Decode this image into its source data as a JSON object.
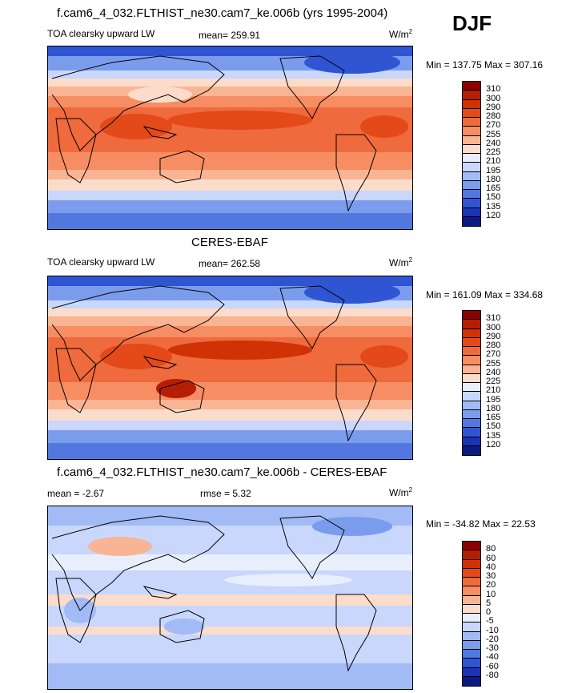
{
  "season": "DJF",
  "panels": [
    {
      "title": "f.cam6_4_032.FLTHIST_ne30.cam7_ke.006b (yrs 1995-2004)",
      "left_label": "TOA clearsky upward LW",
      "center_label": "mean= 259.91",
      "units": "W/m",
      "units_sup": "2",
      "minmax": "Min = 137.75 Max = 307.16",
      "levels": [
        "310",
        "300",
        "290",
        "280",
        "270",
        "255",
        "240",
        "225",
        "210",
        "195",
        "180",
        "165",
        "150",
        "135",
        "120"
      ],
      "colors": [
        "#8b0000",
        "#b51d05",
        "#d03205",
        "#e4491a",
        "#ef6a3c",
        "#f68d63",
        "#f9b493",
        "#fbdccb",
        "#e9eefc",
        "#c8d7fb",
        "#a2bbf6",
        "#7b9ced",
        "#5278e0",
        "#2f55d3",
        "#1b33b4",
        "#0a1a80"
      ]
    },
    {
      "title": "CERES-EBAF",
      "left_label": "TOA clearsky upward LW",
      "center_label": "mean= 262.58",
      "units": "W/m",
      "units_sup": "2",
      "minmax": "Min = 161.09 Max = 334.68",
      "levels": [
        "310",
        "300",
        "290",
        "280",
        "270",
        "255",
        "240",
        "225",
        "210",
        "195",
        "180",
        "165",
        "150",
        "135",
        "120"
      ],
      "colors": [
        "#8b0000",
        "#b51d05",
        "#d03205",
        "#e4491a",
        "#ef6a3c",
        "#f68d63",
        "#f9b493",
        "#fbdccb",
        "#e9eefc",
        "#c8d7fb",
        "#a2bbf6",
        "#7b9ced",
        "#5278e0",
        "#2f55d3",
        "#1b33b4",
        "#0a1a80"
      ]
    },
    {
      "title": "f.cam6_4_032.FLTHIST_ne30.cam7_ke.006b - CERES-EBAF",
      "left_label": "mean =  -2.67",
      "center_label": "rmse =   5.32",
      "units": "W/m",
      "units_sup": "2",
      "minmax": "Min = -34.82 Max =  22.53",
      "levels": [
        "80",
        "60",
        "40",
        "30",
        "20",
        "10",
        "5",
        "0",
        "-5",
        "-10",
        "-20",
        "-30",
        "-40",
        "-60",
        "-80"
      ],
      "colors": [
        "#8b0000",
        "#b51d05",
        "#d03205",
        "#e4491a",
        "#ef6a3c",
        "#f68d63",
        "#f9b493",
        "#fbdccb",
        "#e9eefc",
        "#c8d7fb",
        "#a2bbf6",
        "#7b9ced",
        "#5278e0",
        "#2f55d3",
        "#1b33b4",
        "#0a1a80"
      ]
    }
  ],
  "chart_data": [
    {
      "type": "heatmap",
      "title": "f.cam6_4_032.FLTHIST_ne30.cam7_ke.006b (yrs 1995-2004)",
      "variable": "TOA clearsky upward LW",
      "units": "W/m2",
      "mean": 259.91,
      "min": 137.75,
      "max": 307.16,
      "contour_levels": [
        120,
        135,
        150,
        165,
        180,
        195,
        210,
        225,
        240,
        255,
        270,
        280,
        290,
        300,
        310
      ]
    },
    {
      "type": "heatmap",
      "title": "CERES-EBAF",
      "variable": "TOA clearsky upward LW",
      "units": "W/m2",
      "mean": 262.58,
      "min": 161.09,
      "max": 334.68,
      "contour_levels": [
        120,
        135,
        150,
        165,
        180,
        195,
        210,
        225,
        240,
        255,
        270,
        280,
        290,
        300,
        310
      ]
    },
    {
      "type": "heatmap",
      "title": "f.cam6_4_032.FLTHIST_ne30.cam7_ke.006b - CERES-EBAF",
      "units": "W/m2",
      "mean": -2.67,
      "rmse": 5.32,
      "min": -34.82,
      "max": 22.53,
      "contour_levels": [
        -80,
        -60,
        -40,
        -30,
        -20,
        -10,
        -5,
        0,
        5,
        10,
        20,
        30,
        40,
        60,
        80
      ]
    }
  ]
}
